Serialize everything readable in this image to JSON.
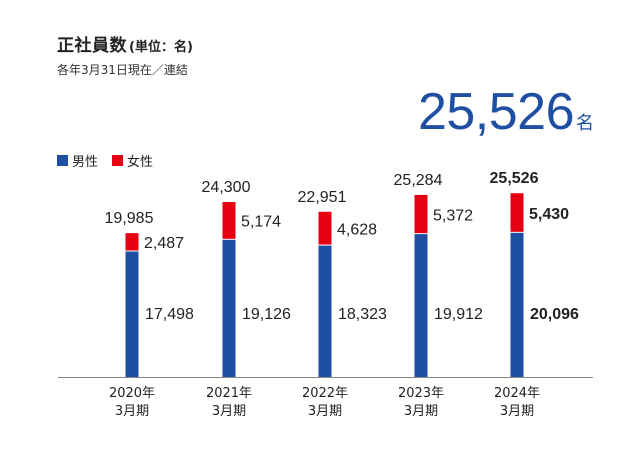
{
  "header": {
    "title": "正社員数",
    "unit": "(単位：名)",
    "subtitle": "各年3月31日現在／連結",
    "total_value": "25,526",
    "total_unit": "名"
  },
  "colors": {
    "male": "#1f4fa3",
    "female": "#e60012",
    "axis": "#888888",
    "accent": "#1f4fa3"
  },
  "chart_data": {
    "type": "bar",
    "stacked": true,
    "categories": [
      "2020年\n3月期",
      "2021年\n3月期",
      "2022年\n3月期",
      "2023年\n3月期",
      "2024年\n3月期"
    ],
    "category_lines": [
      [
        "2020年",
        "3月期"
      ],
      [
        "2021年",
        "3月期"
      ],
      [
        "2022年",
        "3月期"
      ],
      [
        "2023年",
        "3月期"
      ],
      [
        "2024年",
        "3月期"
      ]
    ],
    "series": [
      {
        "name": "男性",
        "values": [
          17498,
          19126,
          18323,
          19912,
          20096
        ],
        "labels": [
          "17,498",
          "19,126",
          "18,323",
          "19,912",
          "20,096"
        ]
      },
      {
        "name": "女性",
        "values": [
          2487,
          5174,
          4628,
          5372,
          5430
        ],
        "labels": [
          "2,487",
          "5,174",
          "4,628",
          "5,372",
          "5,430"
        ]
      }
    ],
    "totals": [
      19985,
      24300,
      22951,
      25284,
      25526
    ],
    "total_labels": [
      "19,985",
      "24,300",
      "22,951",
      "25,284",
      "25,526"
    ],
    "highlight_index": 4,
    "ylim": [
      0,
      28800
    ],
    "title": "正社員数",
    "xlabel": "",
    "ylabel": "",
    "grid": false,
    "legend": "top-left"
  }
}
